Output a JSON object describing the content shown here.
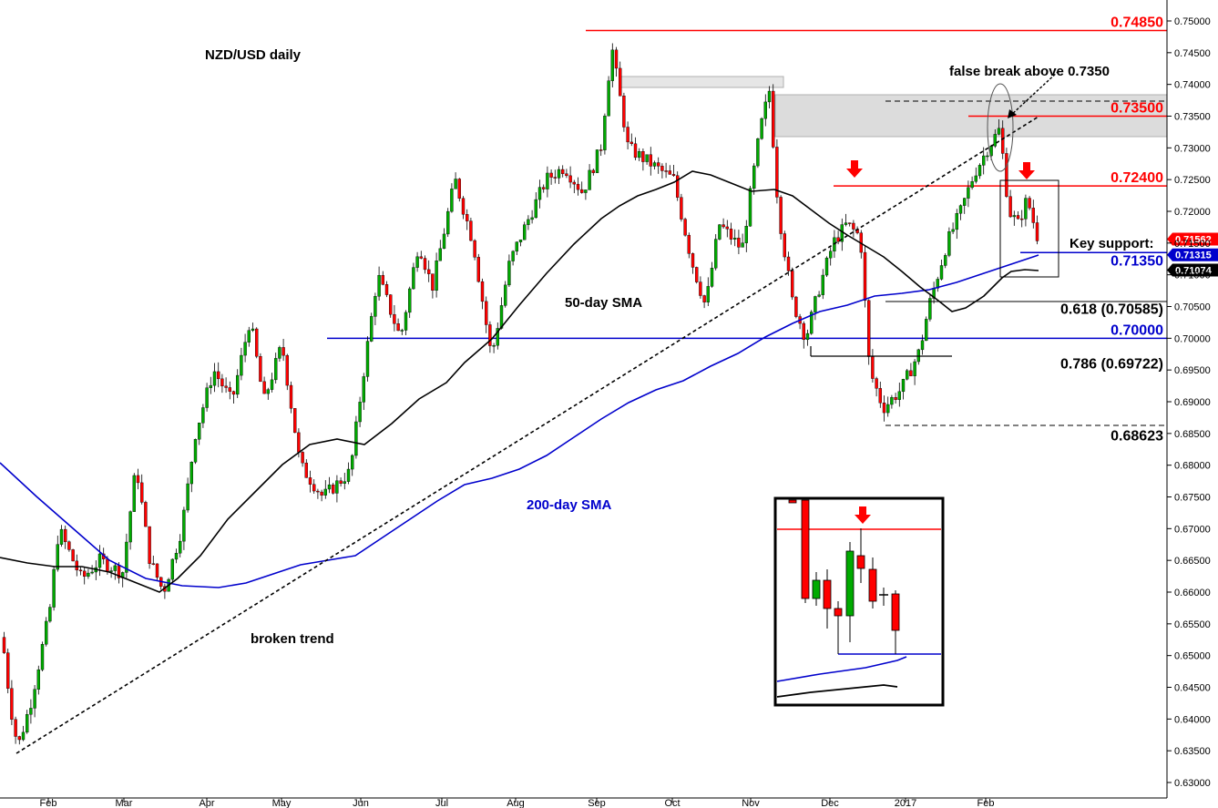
{
  "chart_data": {
    "type": "candlestick",
    "title": "NZD/USD daily",
    "y_range": [
      0.63,
      0.75
    ],
    "y_ticks": [
      "0.75000",
      "0.74500",
      "0.74000",
      "0.73500",
      "0.73000",
      "0.72500",
      "0.72000",
      "0.71500",
      "0.71000",
      "0.70500",
      "0.70000",
      "0.69500",
      "0.69000",
      "0.68500",
      "0.68000",
      "0.67500",
      "0.67000",
      "0.66500",
      "0.66000",
      "0.65500",
      "0.65000",
      "0.64500",
      "0.64000",
      "0.63500",
      "0.63000"
    ],
    "x_ticks": [
      "Feb",
      "Mar",
      "Apr",
      "May",
      "Jun",
      "Jul",
      "Aug",
      "Sep",
      "Oct",
      "Nov",
      "Dec",
      "2017",
      "Feb"
    ],
    "levels": [
      {
        "label": "0.74850",
        "value": 0.7485,
        "color": "#ff0000"
      },
      {
        "label": "0.73500",
        "value": 0.735,
        "color": "#ff0000"
      },
      {
        "label": "0.72400",
        "value": 0.724,
        "color": "#ff0000"
      },
      {
        "label": "0.71350",
        "value": 0.7135,
        "color": "#0000cc"
      },
      {
        "label": "0.70000",
        "value": 0.7,
        "color": "#0000cc"
      },
      {
        "label": "0.618 (0.70585)",
        "value": 0.70585,
        "color": "#000000"
      },
      {
        "label": "0.786 (0.69722)",
        "value": 0.69722,
        "color": "#000000"
      },
      {
        "label": "0.68623",
        "value": 0.68623,
        "color": "#000000"
      }
    ],
    "price_tags": [
      {
        "label": "0.71562",
        "value": 0.71562,
        "bg": "#ff0000"
      },
      {
        "label": "0.71315",
        "value": 0.71315,
        "bg": "#0000cc"
      },
      {
        "label": "0.71074",
        "value": 0.71074,
        "bg": "#000000"
      }
    ],
    "annotations": {
      "sma50": "50-day SMA",
      "sma200": "200-day SMA",
      "broken_trend": "broken trend",
      "false_break": "false break above 0.7350",
      "key_support": "Key support:"
    },
    "colors": {
      "up": "#00aa00",
      "down": "#ff0000",
      "sma50": "#000000",
      "sma200": "#0000cc",
      "zone": "#d9d9d9"
    }
  }
}
